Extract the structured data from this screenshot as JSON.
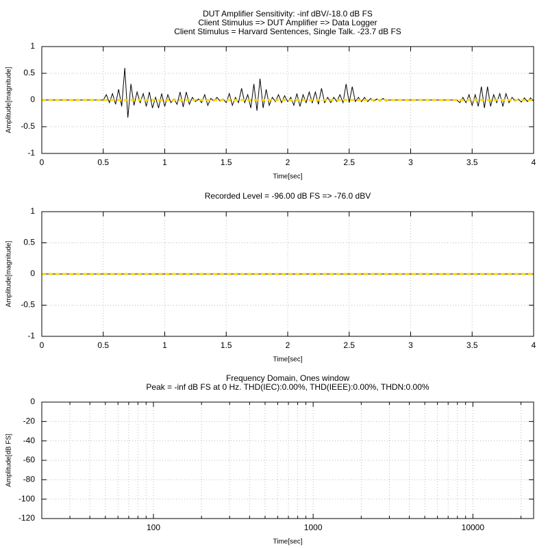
{
  "chart_data": [
    {
      "type": "line",
      "title": [
        "DUT Amplifier Sensitivity: -inf dBV/-18.0 dB FS",
        "Client Stimulus => DUT Amplifier => Data Logger",
        "Client Stimulus = Harvard Sentences, Single Talk. -23.7 dB FS"
      ],
      "xlabel": "Time[sec]",
      "ylabel": "Amplitude[magnitude]",
      "xlim": [
        0,
        4
      ],
      "ylim": [
        -1,
        1
      ],
      "xticks": [
        0,
        0.5,
        1,
        1.5,
        2,
        2.5,
        3,
        3.5,
        4
      ],
      "yticks": [
        -1,
        -0.5,
        0,
        0.5,
        1
      ],
      "grid": true,
      "series": [
        {
          "color": "#000000",
          "x": [
            0,
            0.025,
            0.05,
            0.075,
            0.1,
            0.125,
            0.15,
            0.175,
            0.2,
            0.225,
            0.25,
            0.275,
            0.3,
            0.325,
            0.35,
            0.375,
            0.4,
            0.425,
            0.45,
            0.475,
            0.5,
            0.525,
            0.55,
            0.575,
            0.6,
            0.625,
            0.65,
            0.675,
            0.7,
            0.725,
            0.75,
            0.775,
            0.8,
            0.825,
            0.85,
            0.875,
            0.9,
            0.925,
            0.95,
            0.975,
            1,
            1.025,
            1.05,
            1.075,
            1.1,
            1.125,
            1.15,
            1.175,
            1.2,
            1.225,
            1.25,
            1.275,
            1.3,
            1.325,
            1.35,
            1.375,
            1.4,
            1.425,
            1.45,
            1.475,
            1.5,
            1.525,
            1.55,
            1.575,
            1.6,
            1.625,
            1.65,
            1.675,
            1.7,
            1.725,
            1.75,
            1.775,
            1.8,
            1.825,
            1.85,
            1.875,
            1.9,
            1.925,
            1.95,
            1.975,
            2,
            2.025,
            2.05,
            2.075,
            2.1,
            2.125,
            2.15,
            2.175,
            2.2,
            2.225,
            2.25,
            2.275,
            2.3,
            2.325,
            2.35,
            2.375,
            2.4,
            2.425,
            2.45,
            2.475,
            2.5,
            2.525,
            2.55,
            2.575,
            2.6,
            2.625,
            2.65,
            2.675,
            2.7,
            2.725,
            2.75,
            2.775,
            2.8,
            2.825,
            2.85,
            2.875,
            2.9,
            2.925,
            2.95,
            2.975,
            3,
            3.025,
            3.05,
            3.075,
            3.1,
            3.125,
            3.15,
            3.175,
            3.2,
            3.225,
            3.25,
            3.275,
            3.3,
            3.325,
            3.35,
            3.375,
            3.4,
            3.425,
            3.45,
            3.475,
            3.5,
            3.525,
            3.55,
            3.575,
            3.6,
            3.625,
            3.65,
            3.675,
            3.7,
            3.725,
            3.75,
            3.775,
            3.8,
            3.825,
            3.85,
            3.875,
            3.9,
            3.925,
            3.95,
            3.975,
            4
          ],
          "values": [
            0,
            0,
            0,
            0,
            0,
            0,
            0,
            0,
            0,
            0,
            0,
            0,
            0,
            0,
            0,
            0,
            0,
            0,
            0,
            0,
            0,
            0.1,
            -0.05,
            0.12,
            -0.08,
            0.2,
            -0.12,
            0.6,
            -0.33,
            0.3,
            -0.1,
            0.15,
            -0.05,
            0.12,
            -0.12,
            0.15,
            -0.15,
            0.05,
            -0.15,
            0.12,
            -0.12,
            0.1,
            -0.05,
            0.02,
            -0.08,
            0.15,
            -0.13,
            0.15,
            -0.08,
            0.05,
            -0.03,
            0.02,
            -0.05,
            0.1,
            -0.1,
            0.03,
            -0.02,
            0.05,
            -0.02,
            0.02,
            -0.05,
            0.12,
            -0.1,
            0.05,
            -0.05,
            0.22,
            -0.05,
            0.1,
            -0.15,
            0.3,
            -0.2,
            0.4,
            -0.15,
            0.2,
            -0.1,
            0.05,
            -0.03,
            0.1,
            -0.05,
            0.08,
            -0.03,
            0.05,
            -0.1,
            0.12,
            -0.12,
            0.1,
            -0.05,
            0.15,
            -0.05,
            0.15,
            -0.08,
            0.22,
            -0.05,
            0.05,
            -0.05,
            0.05,
            -0.03,
            0.1,
            -0.05,
            0.3,
            -0.05,
            0.25,
            -0.03,
            0.05,
            -0.03,
            0.05,
            -0.03,
            0.03,
            -0.02,
            0.02,
            -0.02,
            0.03,
            -0.02,
            0,
            0,
            0,
            0,
            0,
            0,
            0,
            0,
            0,
            0,
            0,
            0,
            0,
            0,
            0,
            0,
            0,
            0,
            0,
            0,
            0,
            0,
            0,
            -0.05,
            0.05,
            -0.05,
            0.1,
            -0.1,
            0.1,
            -0.12,
            0.25,
            -0.15,
            0.25,
            -0.12,
            0.1,
            -0.05,
            0.12,
            -0.12,
            0.12,
            -0.05,
            0.05,
            -0.02,
            0.02,
            -0.04,
            0.04,
            -0.03,
            0.04,
            -0.02
          ]
        },
        {
          "color": "#ffd700",
          "dashed": true,
          "x": [
            0,
            4
          ],
          "values": [
            0,
            0
          ]
        }
      ]
    },
    {
      "type": "line",
      "title": [
        "Recorded Level = -96.00 dB FS  => -76.0 dBV"
      ],
      "xlabel": "Time[sec]",
      "ylabel": "Amplitude[magnitude]",
      "xlim": [
        0,
        4
      ],
      "ylim": [
        -1,
        1
      ],
      "xticks": [
        0,
        0.5,
        1,
        1.5,
        2,
        2.5,
        3,
        3.5,
        4
      ],
      "yticks": [
        -1,
        -0.5,
        0,
        0.5,
        1
      ],
      "grid": true,
      "series": [
        {
          "color": "#000000",
          "x": [
            0,
            4
          ],
          "values": [
            0,
            0
          ]
        },
        {
          "color": "#ffd700",
          "dashed": true,
          "x": [
            0,
            4
          ],
          "values": [
            0,
            0
          ]
        }
      ]
    },
    {
      "type": "line",
      "title": [
        "Frequency Domain, Ones window",
        "Peak = -inf dB FS at 0 Hz. THD(IEC):0.00%, THD(IEEE):0.00%, THDN:0.00%"
      ],
      "xlabel": "Time[sec]",
      "ylabel": "Amplitude[dB FS]",
      "xscale": "log",
      "xlim": [
        20,
        24000
      ],
      "ylim": [
        -120,
        0
      ],
      "xticks": [
        100,
        1000,
        10000
      ],
      "xminorticks": [
        30,
        40,
        50,
        60,
        70,
        80,
        90,
        200,
        300,
        400,
        500,
        600,
        700,
        800,
        900,
        2000,
        3000,
        4000,
        5000,
        6000,
        7000,
        8000,
        9000,
        20000
      ],
      "yticks": [
        0,
        -20,
        -40,
        -60,
        -80,
        -100,
        -120
      ],
      "grid": true,
      "series": []
    }
  ]
}
